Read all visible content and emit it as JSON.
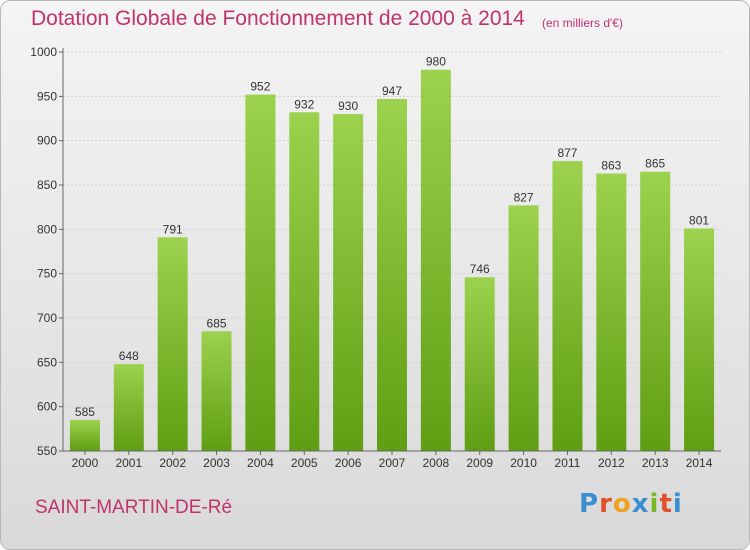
{
  "title": "Dotation Globale de Fonctionnement de 2000 à 2014",
  "unit_note": "(en milliers d'€)",
  "commune": "SAINT-MARTIN-DE-Ré",
  "logo": {
    "letters": [
      "P",
      "r",
      "o",
      "x",
      "i",
      "t",
      "i"
    ],
    "colors": [
      "#3a8fd1",
      "#e0502a",
      "#f0a020",
      "#3a8fd1",
      "#7ab828",
      "#e0502a",
      "#3a8fd1"
    ]
  },
  "colors": {
    "bar_top": "#9cd24e",
    "bar_bottom": "#5f9e12",
    "title": "#c0336b"
  },
  "chart_data": {
    "type": "bar",
    "title": "Dotation Globale de Fonctionnement de 2000 à 2014",
    "xlabel": "",
    "ylabel": "",
    "categories": [
      "2000",
      "2001",
      "2002",
      "2003",
      "2004",
      "2005",
      "2006",
      "2007",
      "2008",
      "2009",
      "2010",
      "2011",
      "2012",
      "2013",
      "2014"
    ],
    "values": [
      585,
      648,
      791,
      685,
      952,
      932,
      930,
      947,
      980,
      746,
      827,
      877,
      863,
      865,
      801
    ],
    "ylim": [
      550,
      1000
    ],
    "yticks": [
      550,
      600,
      650,
      700,
      750,
      800,
      850,
      900,
      950,
      1000
    ],
    "grid": true
  }
}
